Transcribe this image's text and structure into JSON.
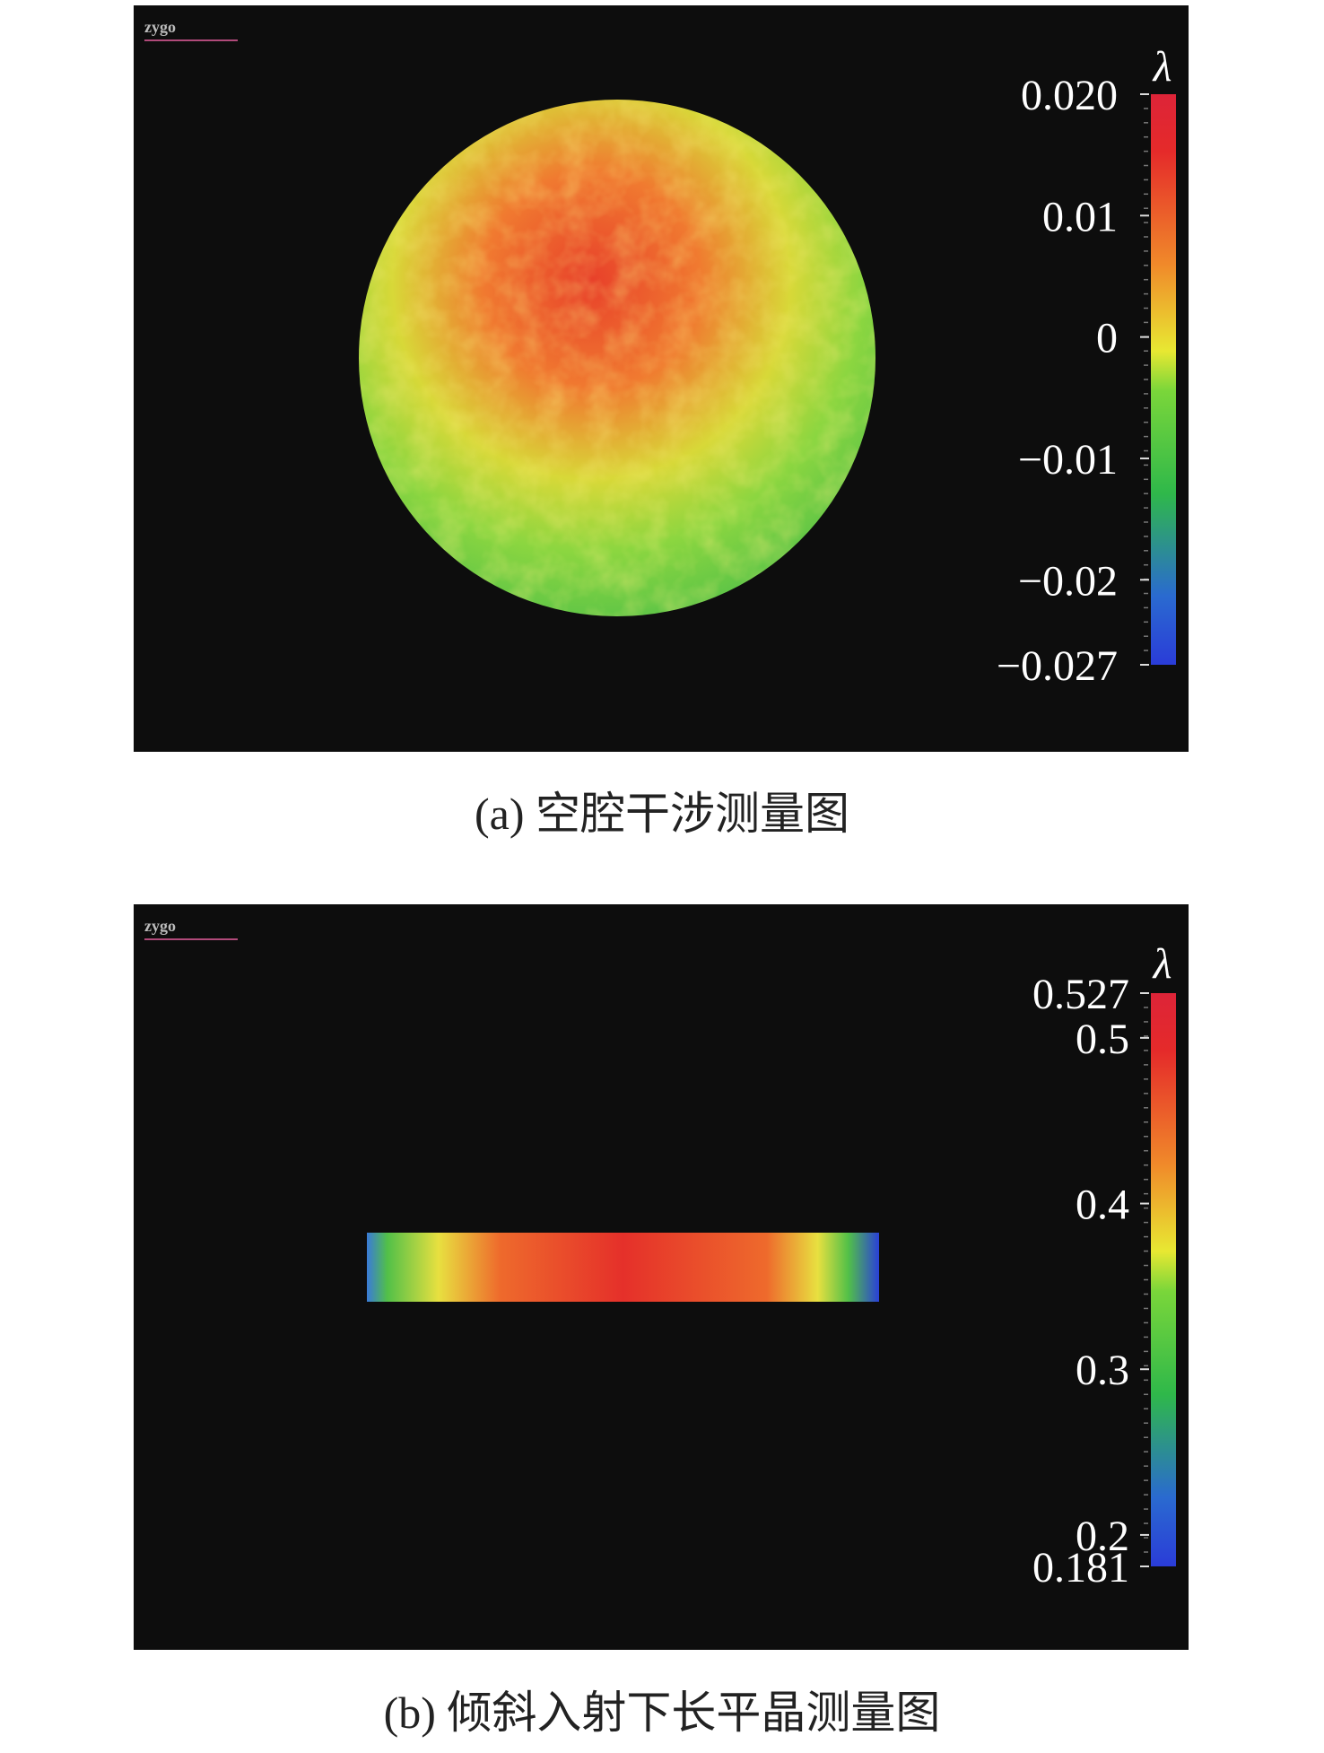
{
  "panels": [
    {
      "logo": "zygo",
      "unit": "λ",
      "caption": "(a) 空腔干涉测量图",
      "colorbar": {
        "lim": [
          -0.027,
          0.02
        ],
        "ticks": [
          {
            "value": 0.02,
            "label": "0.020"
          },
          0.01,
          0,
          {
            "value": -0.01,
            "label": "−0.01"
          },
          {
            "value": -0.02,
            "label": "−0.02"
          },
          {
            "value": -0.027,
            "label": "−0.027"
          }
        ]
      }
    },
    {
      "logo": "zygo",
      "unit": "λ",
      "caption": "(b) 倾斜入射下长平晶测量图",
      "colorbar": {
        "lim": [
          0.181,
          0.527
        ],
        "ticks": [
          0.527,
          0.5,
          0.4,
          0.3,
          0.2,
          0.181
        ]
      }
    }
  ]
}
